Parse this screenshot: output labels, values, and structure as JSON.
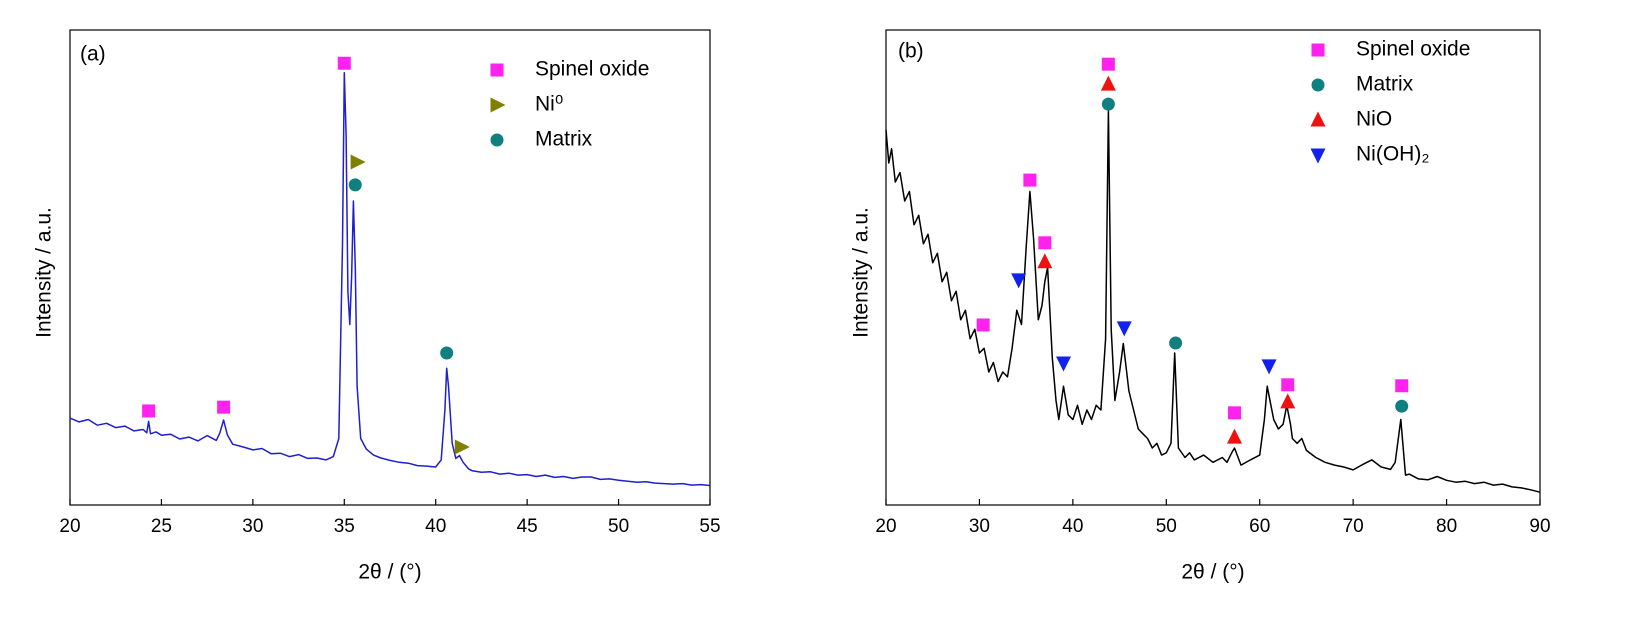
{
  "chart_data": [
    {
      "type": "line",
      "label": "(a)",
      "xlabel": "2θ / (°)",
      "ylabel": "Intensity / a.u.",
      "xlim": [
        20,
        55
      ],
      "xticks": [
        20,
        25,
        30,
        35,
        40,
        45,
        50,
        55
      ],
      "ylim": [
        0,
        100
      ],
      "line": {
        "color": "#1f1fcc",
        "x": [
          20,
          20.5,
          21,
          21.5,
          22,
          22.5,
          23,
          23.5,
          24,
          24.2,
          24.3,
          24.4,
          24.7,
          25,
          25.5,
          26,
          26.5,
          27,
          27.5,
          28,
          28.2,
          28.4,
          28.6,
          28.9,
          29.5,
          30,
          30.5,
          31,
          31.5,
          32,
          32.5,
          33,
          33.5,
          34,
          34.4,
          34.7,
          34.9,
          35.0,
          35.1,
          35.2,
          35.3,
          35.4,
          35.5,
          35.6,
          35.7,
          35.9,
          36.2,
          36.6,
          37,
          37.5,
          38,
          38.5,
          39,
          39.5,
          40,
          40.3,
          40.5,
          40.6,
          40.7,
          40.9,
          41.1,
          41.3,
          41.5,
          41.8,
          42,
          42.5,
          43,
          43.5,
          44,
          44.5,
          45,
          45.5,
          46,
          46.5,
          47,
          47.5,
          48,
          48.5,
          49,
          49.5,
          50,
          50.5,
          51,
          51.5,
          52,
          52.5,
          53,
          53.5,
          54,
          54.5,
          55
        ],
        "values": [
          18.3,
          17.5,
          18.0,
          16.8,
          17.2,
          16.3,
          16.6,
          15.6,
          15.9,
          15.2,
          17.6,
          15.0,
          15.4,
          14.7,
          14.9,
          13.9,
          14.3,
          13.5,
          14.6,
          13.6,
          15.2,
          17.9,
          14.8,
          12.8,
          12.2,
          11.6,
          11.9,
          10.8,
          10.9,
          10.2,
          10.6,
          9.8,
          9.9,
          9.5,
          10.2,
          14,
          55,
          91,
          78,
          45,
          38,
          48,
          64,
          50,
          25,
          14,
          11.8,
          10.5,
          9.9,
          9.4,
          9.0,
          8.8,
          8.3,
          8.2,
          8.0,
          9.5,
          20,
          28.8,
          25,
          13,
          9.8,
          10.4,
          9.0,
          7.6,
          7.2,
          6.9,
          7.0,
          6.5,
          6.7,
          6.3,
          6.4,
          6.0,
          6.3,
          5.8,
          6.0,
          5.6,
          5.9,
          5.9,
          5.4,
          5.5,
          5.2,
          5.0,
          4.8,
          4.9,
          4.6,
          4.5,
          4.4,
          4.5,
          4.2,
          4.3,
          4.1
        ]
      },
      "series": [
        {
          "name": "Spinel oxide",
          "color": "#ff22ee",
          "marker": "square",
          "x": [
            24.3,
            28.4,
            35.0
          ],
          "values": [
            19.8,
            20.6,
            93
          ]
        },
        {
          "name": "Ni⁰",
          "color": "#808000",
          "marker": "triangle-right",
          "x": [
            35.7,
            41.4
          ],
          "values": [
            72.2,
            12.2
          ]
        },
        {
          "name": "Matrix",
          "color": "#0f7f7f",
          "marker": "circle",
          "x": [
            35.6,
            40.6
          ],
          "values": [
            67.4,
            32
          ]
        }
      ]
    },
    {
      "type": "line",
      "label": "(b)",
      "xlabel": "2θ / (°)",
      "ylabel": "Intensity / a.u.",
      "xlim": [
        20,
        90
      ],
      "xticks": [
        20,
        30,
        40,
        50,
        60,
        70,
        80,
        90
      ],
      "ylim": [
        0,
        100
      ],
      "line": {
        "color": "#000000",
        "x": [
          20,
          20.3,
          20.6,
          21,
          21.5,
          22,
          22.5,
          23,
          23.5,
          24,
          24.5,
          25,
          25.5,
          26,
          26.5,
          27,
          27.5,
          28,
          28.5,
          29,
          29.5,
          30,
          30.5,
          31,
          31.5,
          32,
          32.5,
          33,
          33.5,
          34,
          34.5,
          35,
          35.4,
          35.8,
          36.3,
          36.7,
          37,
          37.3,
          37.8,
          38.2,
          38.5,
          39,
          39.5,
          40,
          40.5,
          41,
          41.5,
          42,
          42.5,
          43,
          43.5,
          43.8,
          44.1,
          44.5,
          45,
          45.4,
          46,
          46.5,
          47,
          47.5,
          48,
          48.5,
          49,
          49.5,
          50,
          50.5,
          50.9,
          51.3,
          52,
          52.5,
          53,
          54,
          55,
          56,
          56.5,
          57,
          57.3,
          58,
          59,
          60,
          60.5,
          60.8,
          61.2,
          61.5,
          62,
          62.5,
          62.9,
          63.3,
          63.5,
          64,
          64.5,
          65,
          66,
          67,
          68,
          69,
          70,
          71,
          72,
          73,
          74,
          74.5,
          75.1,
          75.6,
          76,
          77,
          78,
          79,
          80,
          81,
          82,
          83,
          84,
          85,
          86,
          87,
          88,
          89,
          90
        ],
        "values": [
          79,
          72,
          75,
          68,
          70,
          64,
          66,
          59,
          61,
          55,
          57,
          51,
          53,
          47,
          49,
          43,
          45,
          39,
          41,
          35,
          37,
          32,
          33,
          28,
          30,
          26,
          28,
          27,
          33,
          41,
          38,
          54,
          66,
          56,
          39,
          42,
          47,
          50,
          31,
          22,
          18,
          25,
          19,
          18,
          21,
          17,
          20,
          18,
          21,
          20,
          35,
          83,
          37,
          22,
          28,
          34,
          24,
          20,
          16,
          15,
          14,
          12,
          13,
          10.5,
          11,
          13,
          32,
          12,
          10,
          11,
          9.5,
          10.5,
          9,
          10,
          9,
          11,
          12,
          8.4,
          9.5,
          10.5,
          18,
          25,
          21,
          18,
          16,
          17,
          21,
          17,
          14,
          13,
          14,
          11.5,
          10,
          9,
          8.4,
          8,
          7.4,
          8.5,
          9.5,
          8,
          7.5,
          9,
          18,
          6.3,
          6.5,
          5.5,
          5.3,
          6,
          5.2,
          4.8,
          5,
          4.5,
          4.8,
          4.2,
          4.4,
          3.8,
          3.6,
          3.2,
          2.7
        ]
      },
      "series": [
        {
          "name": "Spinel oxide",
          "color": "#ff22ee",
          "marker": "square",
          "x": [
            30.4,
            35.4,
            37.0,
            43.8,
            57.3,
            63.0,
            75.2
          ],
          "values": [
            37.9,
            68.4,
            55.2,
            92.8,
            19.4,
            25.3,
            25.1
          ]
        },
        {
          "name": "Matrix",
          "color": "#0f7f7f",
          "marker": "circle",
          "x": [
            43.8,
            51.0,
            75.2
          ],
          "values": [
            84.4,
            34.1,
            20.8
          ]
        },
        {
          "name": "NiO",
          "color": "#ee1111",
          "marker": "triangle-up",
          "x": [
            37.0,
            43.8,
            57.3,
            63.0
          ],
          "values": [
            51.2,
            88.6,
            14.3,
            21.7
          ]
        },
        {
          "name": "Ni(OH)₂",
          "color": "#1122ee",
          "marker": "triangle-down",
          "x": [
            34.2,
            39.0,
            45.5,
            61.0
          ],
          "values": [
            47.4,
            29.9,
            37.3,
            29.3
          ]
        }
      ]
    }
  ]
}
